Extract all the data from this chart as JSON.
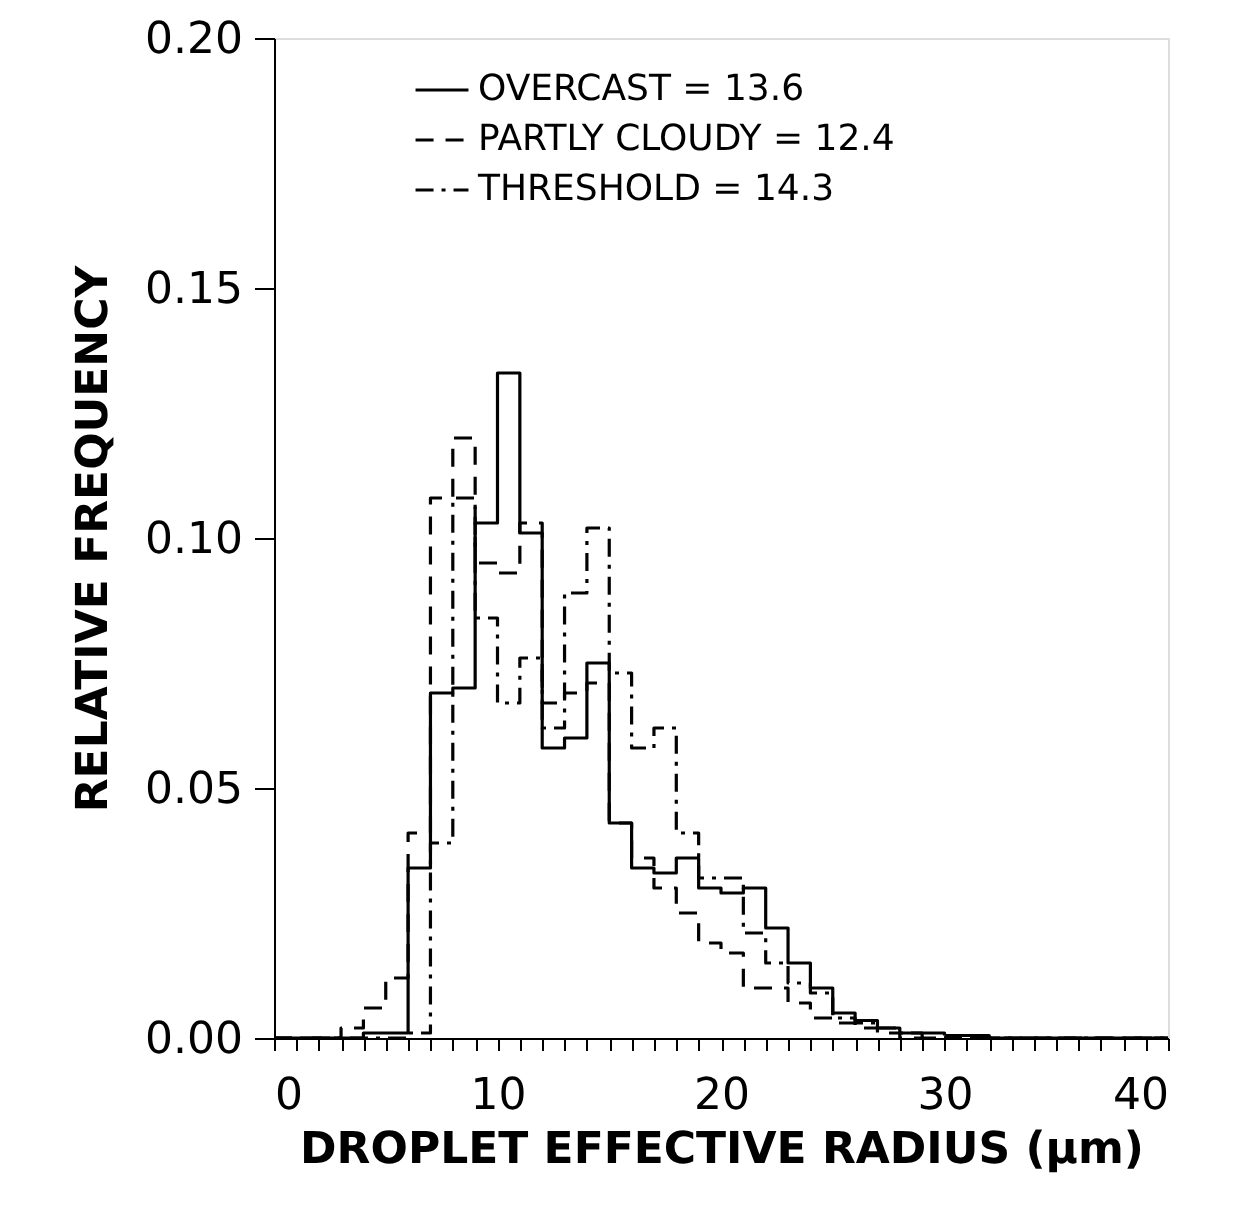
{
  "chart_data": {
    "type": "histogram",
    "xlabel": "DROPLET EFFECTIVE RADIUS (μm)",
    "ylabel": "RELATIVE FREQUENCY",
    "bins": [
      0,
      1,
      2,
      3,
      4,
      5,
      6,
      7,
      8,
      9,
      10,
      11,
      12,
      13,
      14,
      15,
      16,
      17,
      18,
      19,
      20,
      21,
      22,
      23,
      24,
      25,
      26,
      27,
      28,
      29,
      30,
      31,
      32,
      33,
      34,
      35,
      36,
      37,
      38,
      39,
      40
    ],
    "series": [
      {
        "name": "OVERCAST =  13.6",
        "color": "#000000",
        "line_style": "solid",
        "values": [
          0,
          0,
          0,
          0,
          0.001,
          0.001,
          0.034,
          0.069,
          0.07,
          0.103,
          0.133,
          0.101,
          0.058,
          0.06,
          0.075,
          0.043,
          0.034,
          0.033,
          0.036,
          0.03,
          0.029,
          0.03,
          0.022,
          0.015,
          0.01,
          0.005,
          0.0035,
          0.002,
          0.001,
          0.001,
          0.0005,
          0.0005,
          0,
          0,
          0,
          0,
          0,
          0,
          0,
          0
        ]
      },
      {
        "name": "PARTLY CLOUDY =  12.4",
        "color": "#010101",
        "line_style": "dashed",
        "values": [
          0,
          0,
          0,
          0.002,
          0.006,
          0.012,
          0.041,
          0.108,
          0.12,
          0.095,
          0.093,
          0.103,
          0.067,
          0.069,
          0.071,
          0.043,
          0.036,
          0.03,
          0.025,
          0.019,
          0.017,
          0.01,
          0.01,
          0.007,
          0.004,
          0.003,
          0.002,
          0.001,
          0,
          0,
          0,
          0,
          0,
          0,
          0,
          0,
          0,
          0,
          0,
          0
        ]
      },
      {
        "name": "THRESHOLD =  14.3",
        "color": "#020202",
        "line_style": "dashdot",
        "values": [
          0,
          0,
          0,
          0,
          0,
          0,
          0.001,
          0.039,
          0.108,
          0.084,
          0.067,
          0.076,
          0.062,
          0.089,
          0.102,
          0.073,
          0.058,
          0.062,
          0.041,
          0.032,
          0.032,
          0.021,
          0.015,
          0.011,
          0.009,
          0.004,
          0.003,
          0.002,
          0.001,
          0,
          0,
          0,
          0,
          0,
          0,
          0,
          0,
          0,
          0,
          0
        ]
      }
    ],
    "xlim": [
      0,
      40
    ],
    "xticks": [
      0,
      {
        "value": 1,
        "label": null
      },
      {
        "value": 2,
        "label": null
      },
      {
        "value": 3,
        "label": null
      },
      {
        "value": 4,
        "label": null
      },
      {
        "value": 5,
        "label": null
      },
      {
        "value": 6,
        "label": null
      },
      {
        "value": 7,
        "label": null
      },
      {
        "value": 8,
        "label": null
      },
      {
        "value": 9,
        "label": null
      },
      10,
      {
        "value": 11,
        "label": null
      },
      {
        "value": 12,
        "label": null
      },
      {
        "value": 13,
        "label": null
      },
      {
        "value": 14,
        "label": null
      },
      {
        "value": 15,
        "label": null
      },
      {
        "value": 16,
        "label": null
      },
      {
        "value": 17,
        "label": null
      },
      {
        "value": 18,
        "label": null
      },
      {
        "value": 19,
        "label": null
      },
      20,
      {
        "value": 21,
        "label": null
      },
      {
        "value": 22,
        "label": null
      },
      {
        "value": 23,
        "label": null
      },
      {
        "value": 24,
        "label": null
      },
      {
        "value": 25,
        "label": null
      },
      {
        "value": 26,
        "label": null
      },
      {
        "value": 27,
        "label": null
      },
      {
        "value": 28,
        "label": null
      },
      {
        "value": 29,
        "label": null
      },
      30,
      {
        "value": 31,
        "label": null
      },
      {
        "value": 32,
        "label": null
      },
      {
        "value": 33,
        "label": null
      },
      {
        "value": 34,
        "label": null
      },
      {
        "value": 35,
        "label": null
      },
      {
        "value": 36,
        "label": null
      },
      {
        "value": 37,
        "label": null
      },
      {
        "value": 38,
        "label": null
      },
      {
        "value": 39,
        "label": null
      },
      40
    ],
    "ylim": [
      0,
      0.2
    ],
    "yticks": [
      {
        "value": 0,
        "label": "0.00"
      },
      {
        "value": 0.05,
        "label": "0.05"
      },
      {
        "value": 0.1,
        "label": "0.10"
      },
      {
        "value": 0.15,
        "label": "0.15"
      },
      {
        "value": 0.2,
        "label": "0.20"
      }
    ],
    "grid": false,
    "legend": "top"
  }
}
